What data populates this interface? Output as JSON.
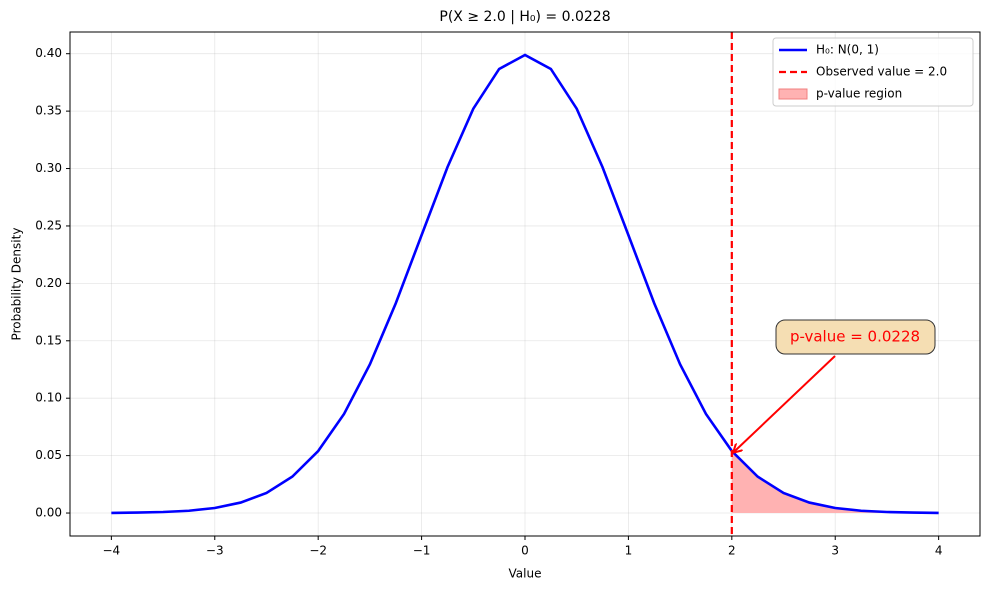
{
  "chart_data": {
    "type": "line",
    "title": "P(X ≥ 2.0 | H₀) = 0.0228",
    "x_label": "Value",
    "y_label": "Probability Density",
    "xlim": [
      -4.4,
      4.4
    ],
    "ylim": [
      -0.02,
      0.4189
    ],
    "xticks": [
      {
        "value": -4,
        "label": "−4"
      },
      {
        "value": -3,
        "label": "−3"
      },
      {
        "value": -2,
        "label": "−2"
      },
      {
        "value": -1,
        "label": "−1"
      },
      0,
      1,
      2,
      3,
      4
    ],
    "yticks": [
      {
        "value": 0,
        "label": "0.00"
      },
      {
        "value": 0.05,
        "label": "0.05"
      },
      {
        "value": 0.1,
        "label": "0.10"
      },
      {
        "value": 0.15,
        "label": "0.15"
      },
      {
        "value": 0.2,
        "label": "0.20"
      },
      {
        "value": 0.25,
        "label": "0.25"
      },
      {
        "value": 0.3,
        "label": "0.30"
      },
      {
        "value": 0.35,
        "label": "0.35"
      },
      {
        "value": 0.4,
        "label": "0.40"
      }
    ],
    "grid": true,
    "legend": "upper right",
    "series": [
      {
        "name": "H₀: N(0, 1)",
        "color": "#0000ff",
        "x": [
          -4,
          -3.75,
          -3.5,
          -3.25,
          -3,
          -2.75,
          -2.5,
          -2.25,
          -2,
          -1.75,
          -1.5,
          -1.25,
          -1,
          -0.75,
          -0.5,
          -0.25,
          0,
          0.25,
          0.5,
          0.75,
          1,
          1.25,
          1.5,
          1.75,
          2,
          2.25,
          2.5,
          2.75,
          3,
          3.25,
          3.5,
          3.75,
          4
        ],
        "values": [
          0.0001,
          0.0004,
          0.0009,
          0.002,
          0.0044,
          0.0091,
          0.0175,
          0.0317,
          0.054,
          0.0863,
          0.1295,
          0.1826,
          0.242,
          0.3011,
          0.3521,
          0.3867,
          0.3989,
          0.3867,
          0.3521,
          0.3011,
          0.242,
          0.1826,
          0.1295,
          0.0863,
          0.054,
          0.0317,
          0.0175,
          0.0091,
          0.0044,
          0.002,
          0.0009,
          0.0004,
          0.0001
        ]
      }
    ],
    "vlines": [
      {
        "name": "Observed value = 2.0",
        "color": "#ff0000",
        "value": 2.0
      }
    ],
    "areas": [
      {
        "name": "p-value region",
        "color": "#ffb2b2",
        "x": [
          2,
          2.25,
          2.5,
          2.75,
          3,
          3.25,
          3.5,
          3.75,
          4
        ],
        "values": [
          0.054,
          0.0317,
          0.0175,
          0.0091,
          0.0044,
          0.002,
          0.0009,
          0.0004,
          0.0001
        ]
      }
    ],
    "annotations": [
      {
        "text": "p-value = 0.0228",
        "color": "#ff0000"
      }
    ]
  }
}
